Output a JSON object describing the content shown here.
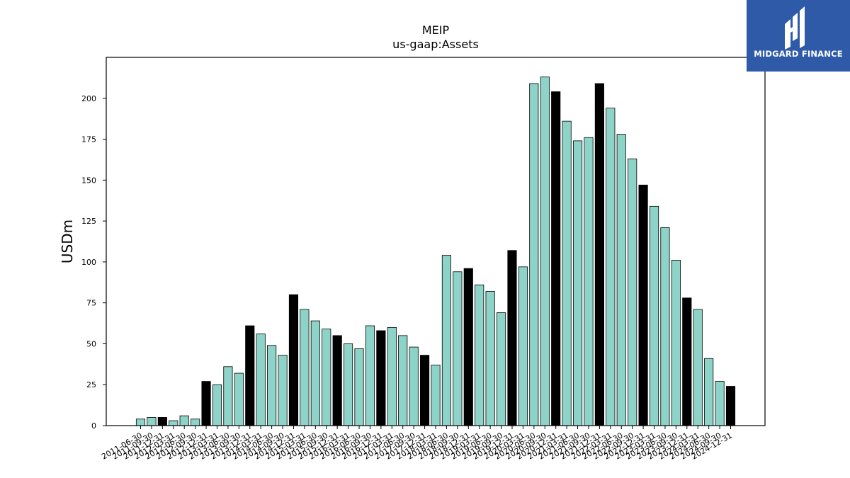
{
  "logo": {
    "brand": "MIDGARD FINANCE",
    "icon": "mf-monogram-icon",
    "bg_color": "#2f5aa8"
  },
  "chart_data": {
    "type": "bar",
    "title": "MEIP",
    "subtitle": "us-gaap:Assets",
    "xlabel": "",
    "ylabel": "USDm",
    "ylim": [
      0,
      225
    ],
    "yticks": [
      0,
      25,
      50,
      75,
      100,
      125,
      150,
      175,
      200
    ],
    "grid": false,
    "colors": {
      "quarter": "#8dd3c7",
      "year_end": "#000000"
    },
    "categories": [
      "2011-06-30",
      "2011-09-30",
      "2011-12-31",
      "2012-03-31",
      "2012-06-30",
      "2012-09-30",
      "2012-12-31",
      "2013-03-31",
      "2013-06-30",
      "2013-09-30",
      "2013-12-31",
      "2014-03-31",
      "2014-06-30",
      "2014-09-30",
      "2014-12-31",
      "2015-03-31",
      "2015-06-30",
      "2015-09-30",
      "2015-12-31",
      "2016-03-31",
      "2016-06-30",
      "2016-09-30",
      "2016-12-31",
      "2017-03-31",
      "2017-06-30",
      "2017-09-30",
      "2017-12-31",
      "2018-03-31",
      "2018-06-30",
      "2018-09-30",
      "2018-12-31",
      "2019-03-31",
      "2019-06-30",
      "2019-09-30",
      "2019-12-31",
      "2020-03-31",
      "2020-06-30",
      "2020-09-30",
      "2020-12-31",
      "2021-03-31",
      "2021-06-30",
      "2021-09-30",
      "2021-12-31",
      "2022-03-31",
      "2022-06-30",
      "2022-09-30",
      "2022-12-31",
      "2023-03-31",
      "2023-06-30",
      "2023-09-30",
      "2023-12-31",
      "2024-03-31",
      "2024-06-30",
      "2024-09-30",
      "2024-12-31"
    ],
    "values": [
      4,
      5,
      5,
      3,
      6,
      4,
      27,
      25,
      36,
      32,
      61,
      56,
      49,
      43,
      80,
      71,
      64,
      59,
      55,
      50,
      47,
      61,
      58,
      60,
      55,
      48,
      43,
      37,
      104,
      94,
      96,
      86,
      82,
      69,
      107,
      97,
      209,
      213,
      204,
      186,
      174,
      176,
      209,
      194,
      178,
      163,
      147,
      134,
      121,
      101,
      78,
      71,
      41,
      27,
      24
    ]
  }
}
